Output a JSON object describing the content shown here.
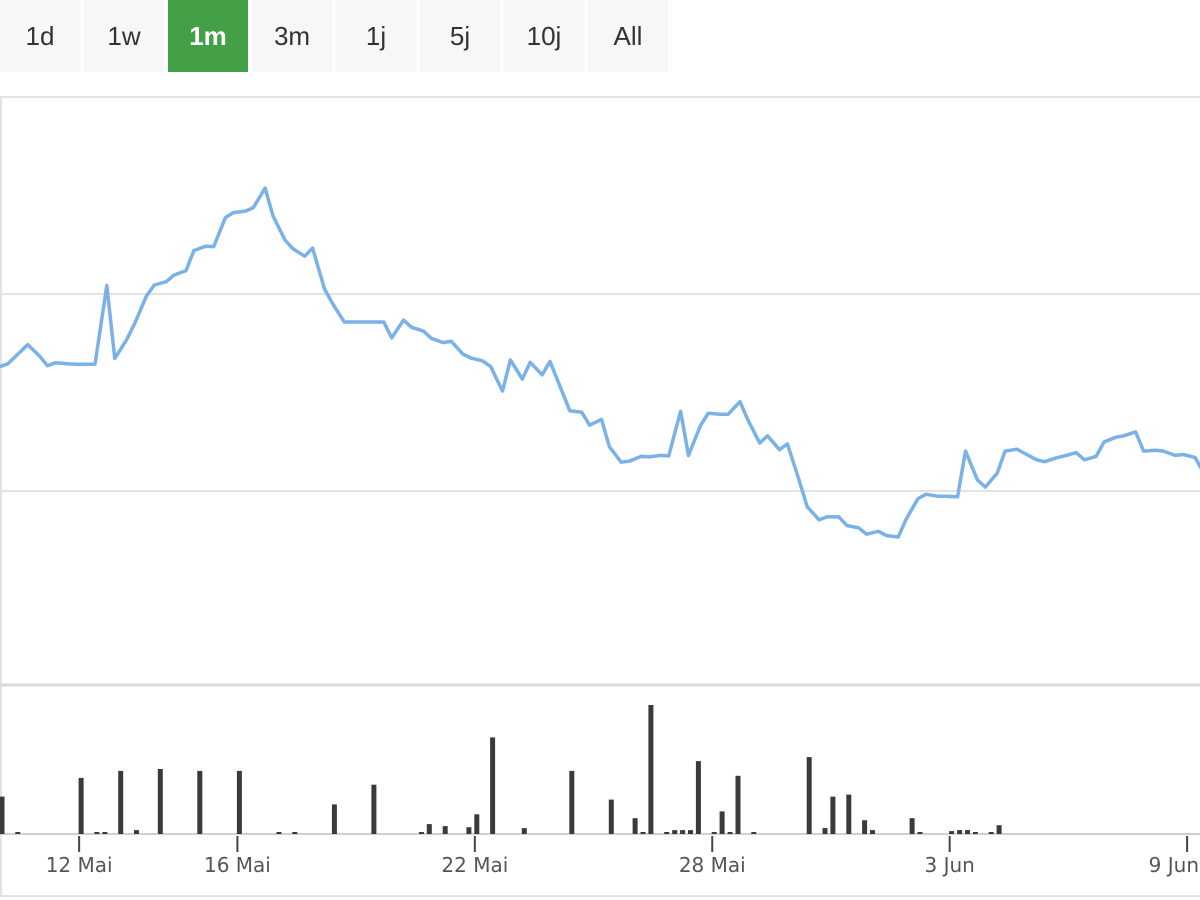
{
  "ranges": [
    {
      "label": "1d",
      "active": false
    },
    {
      "label": "1w",
      "active": false
    },
    {
      "label": "1m",
      "active": true
    },
    {
      "label": "3m",
      "active": false
    },
    {
      "label": "1j",
      "active": false
    },
    {
      "label": "5j",
      "active": false
    },
    {
      "label": "10j",
      "active": false
    },
    {
      "label": "All",
      "active": false
    }
  ],
  "colors": {
    "line": "#7ab1e6",
    "bars": "#3a3a3e",
    "active_button": "#43a047",
    "grid": "#e3e3e3"
  },
  "chart_data": {
    "type": "line",
    "grid": true,
    "x_range": [
      10.0,
      40.2
    ],
    "y_range": [
      0,
      100
    ],
    "x_ticks": [
      {
        "x": 12,
        "label": "12 Mai"
      },
      {
        "x": 16,
        "label": "16 Mai"
      },
      {
        "x": 22,
        "label": "22 Mai"
      },
      {
        "x": 28,
        "label": "28 Mai"
      },
      {
        "x": 34,
        "label": "3 Jun"
      },
      {
        "x": 40,
        "label": "9 Jun"
      }
    ],
    "series": [
      {
        "values": [
          [
            10.0,
            50.7
          ],
          [
            10.2,
            51.3
          ],
          [
            10.5,
            53.7
          ],
          [
            10.7,
            55.3
          ],
          [
            11.0,
            52.9
          ],
          [
            11.2,
            50.9
          ],
          [
            11.4,
            51.5
          ],
          [
            11.7,
            51.3
          ],
          [
            11.9,
            51.2
          ],
          [
            12.2,
            51.2
          ],
          [
            12.4,
            51.2
          ],
          [
            12.7,
            67.6
          ],
          [
            12.9,
            52.4
          ],
          [
            13.2,
            56.3
          ],
          [
            13.4,
            59.6
          ],
          [
            13.7,
            65.4
          ],
          [
            13.9,
            67.7
          ],
          [
            14.2,
            68.4
          ],
          [
            14.4,
            69.8
          ],
          [
            14.7,
            70.7
          ],
          [
            14.9,
            74.9
          ],
          [
            15.2,
            75.8
          ],
          [
            15.4,
            75.7
          ],
          [
            15.7,
            81.8
          ],
          [
            15.9,
            82.8
          ],
          [
            16.2,
            83.1
          ],
          [
            16.4,
            83.8
          ],
          [
            16.7,
            87.9
          ],
          [
            16.9,
            82.1
          ],
          [
            17.2,
            77.1
          ],
          [
            17.4,
            75.3
          ],
          [
            17.7,
            73.7
          ],
          [
            17.9,
            75.4
          ],
          [
            18.2,
            66.9
          ],
          [
            18.4,
            63.9
          ],
          [
            18.7,
            60.0
          ],
          [
            18.9,
            60.0
          ],
          [
            19.2,
            60.0
          ],
          [
            19.4,
            60.0
          ],
          [
            19.7,
            60.0
          ],
          [
            19.9,
            56.7
          ],
          [
            20.2,
            60.4
          ],
          [
            20.4,
            58.9
          ],
          [
            20.7,
            58.1
          ],
          [
            20.9,
            56.6
          ],
          [
            21.2,
            55.7
          ],
          [
            21.4,
            56.0
          ],
          [
            21.7,
            53.3
          ],
          [
            21.9,
            52.5
          ],
          [
            22.2,
            51.9
          ],
          [
            22.4,
            50.7
          ],
          [
            22.7,
            45.6
          ],
          [
            22.9,
            52.1
          ],
          [
            23.2,
            48.1
          ],
          [
            23.4,
            51.6
          ],
          [
            23.7,
            49.0
          ],
          [
            23.9,
            51.8
          ],
          [
            24.2,
            45.6
          ],
          [
            24.4,
            41.5
          ],
          [
            24.7,
            41.2
          ],
          [
            24.9,
            38.5
          ],
          [
            25.2,
            39.7
          ],
          [
            25.4,
            34.0
          ],
          [
            25.7,
            30.8
          ],
          [
            25.9,
            31.0
          ],
          [
            26.2,
            32.0
          ],
          [
            26.4,
            31.9
          ],
          [
            26.7,
            32.2
          ],
          [
            26.9,
            32.1
          ],
          [
            27.2,
            41.4
          ],
          [
            27.4,
            32.2
          ],
          [
            27.7,
            38.4
          ],
          [
            27.9,
            41.0
          ],
          [
            28.2,
            40.8
          ],
          [
            28.4,
            40.8
          ],
          [
            28.7,
            43.4
          ],
          [
            28.9,
            39.6
          ],
          [
            29.2,
            34.8
          ],
          [
            29.4,
            36.3
          ],
          [
            29.7,
            33.4
          ],
          [
            29.9,
            34.6
          ],
          [
            30.2,
            26.9
          ],
          [
            30.4,
            21.5
          ],
          [
            30.7,
            18.8
          ],
          [
            30.9,
            19.4
          ],
          [
            31.2,
            19.4
          ],
          [
            31.4,
            17.6
          ],
          [
            31.7,
            17.1
          ],
          [
            31.9,
            15.8
          ],
          [
            32.2,
            16.4
          ],
          [
            32.4,
            15.5
          ],
          [
            32.7,
            15.2
          ],
          [
            32.9,
            18.9
          ],
          [
            33.2,
            23.2
          ],
          [
            33.4,
            24.1
          ],
          [
            33.7,
            23.7
          ],
          [
            33.9,
            23.7
          ],
          [
            34.2,
            23.6
          ],
          [
            34.4,
            33.1
          ],
          [
            34.7,
            27.1
          ],
          [
            34.9,
            25.6
          ],
          [
            35.2,
            28.5
          ],
          [
            35.4,
            33.1
          ],
          [
            35.7,
            33.5
          ],
          [
            35.9,
            32.6
          ],
          [
            36.2,
            31.3
          ],
          [
            36.4,
            30.9
          ],
          [
            36.7,
            31.7
          ],
          [
            36.9,
            32.1
          ],
          [
            37.2,
            32.8
          ],
          [
            37.4,
            31.3
          ],
          [
            37.7,
            32.0
          ],
          [
            37.9,
            35.0
          ],
          [
            38.2,
            36.0
          ],
          [
            38.4,
            36.3
          ],
          [
            38.7,
            37.1
          ],
          [
            38.9,
            33.1
          ],
          [
            39.2,
            33.3
          ],
          [
            39.4,
            33.1
          ],
          [
            39.7,
            32.2
          ],
          [
            39.9,
            32.4
          ],
          [
            40.2,
            31.8
          ],
          [
            40.4,
            28.9
          ],
          [
            40.7,
            28.0
          ],
          [
            40.9,
            27.9
          ],
          [
            41.2,
            27.9
          ]
        ]
      },
      {
        "type": "bar",
        "y_range": [
          0,
          100
        ],
        "values": [
          [
            10.05,
            27.9
          ],
          [
            10.45,
            1.5
          ],
          [
            12.05,
            41.9
          ],
          [
            12.45,
            1.5
          ],
          [
            12.65,
            1.5
          ],
          [
            13.05,
            47.1
          ],
          [
            13.45,
            2.9
          ],
          [
            14.05,
            48.5
          ],
          [
            15.05,
            47.1
          ],
          [
            16.05,
            47.1
          ],
          [
            17.05,
            1.5
          ],
          [
            17.45,
            1.5
          ],
          [
            18.45,
            22.1
          ],
          [
            19.45,
            36.8
          ],
          [
            20.65,
            1.5
          ],
          [
            20.85,
            7.4
          ],
          [
            21.25,
            5.9
          ],
          [
            21.85,
            5.1
          ],
          [
            22.05,
            14.7
          ],
          [
            22.45,
            72.1
          ],
          [
            23.25,
            4.4
          ],
          [
            24.45,
            47.1
          ],
          [
            25.45,
            25.7
          ],
          [
            26.05,
            11.8
          ],
          [
            26.25,
            1.5
          ],
          [
            26.45,
            96.3
          ],
          [
            26.85,
            1.5
          ],
          [
            27.05,
            2.9
          ],
          [
            27.25,
            2.9
          ],
          [
            27.45,
            2.9
          ],
          [
            27.65,
            54.4
          ],
          [
            28.05,
            1.5
          ],
          [
            28.25,
            16.9
          ],
          [
            28.45,
            1.5
          ],
          [
            28.65,
            43.4
          ],
          [
            29.05,
            1.5
          ],
          [
            30.45,
            57.4
          ],
          [
            30.85,
            4.4
          ],
          [
            31.05,
            27.9
          ],
          [
            31.45,
            29.4
          ],
          [
            31.85,
            10.3
          ],
          [
            32.05,
            2.9
          ],
          [
            33.05,
            11.8
          ],
          [
            33.25,
            1.5
          ],
          [
            34.05,
            2.2
          ],
          [
            34.25,
            2.9
          ],
          [
            34.45,
            2.9
          ],
          [
            34.65,
            1.5
          ],
          [
            35.05,
            1.5
          ],
          [
            35.25,
            6.6
          ]
        ]
      }
    ]
  }
}
